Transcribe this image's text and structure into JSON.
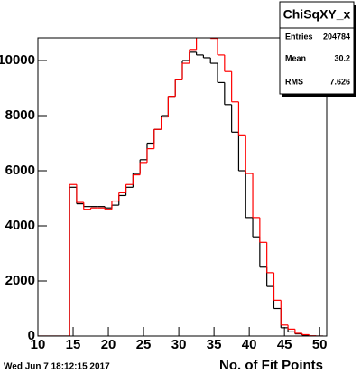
{
  "chart_data": {
    "type": "histogram",
    "x_label": "No. of Fit Points",
    "timestamp": "Wed Jun  7 18:12:15 2017",
    "bins": [
      9.5,
      10.5,
      11.5,
      12.5,
      13.5,
      14.5,
      15.5,
      16.5,
      17.5,
      18.5,
      19.5,
      20.5,
      21.5,
      22.5,
      23.5,
      24.5,
      25.5,
      26.5,
      27.5,
      28.5,
      29.5,
      30.5,
      31.5,
      32.5,
      33.5,
      34.5,
      35.5,
      36.5,
      37.5,
      38.5,
      39.5,
      40.5,
      41.5,
      42.5,
      43.5,
      44.5,
      45.5,
      46.5,
      47.5,
      48.5,
      49.5,
      50.5
    ],
    "series": [
      {
        "color": "#000000",
        "values": [
          0,
          0,
          0,
          0,
          0,
          5400,
          4800,
          4700,
          4700,
          4700,
          4650,
          4750,
          5100,
          5400,
          5900,
          6400,
          7000,
          7500,
          8000,
          8700,
          9300,
          10000,
          10300,
          10200,
          10100,
          9900,
          9200,
          8400,
          7400,
          6000,
          4300,
          3600,
          2500,
          1800,
          1000,
          300,
          150,
          80,
          30,
          0,
          0
        ]
      },
      {
        "color": "#ff0000",
        "values": [
          0,
          0,
          0,
          0,
          0,
          5500,
          4850,
          4600,
          4650,
          4650,
          4600,
          4900,
          5200,
          5500,
          5850,
          6300,
          6800,
          7500,
          7950,
          8700,
          9300,
          9900,
          10400,
          11000,
          11000,
          10800,
          10200,
          9600,
          8500,
          7300,
          5900,
          4300,
          3400,
          2300,
          1300,
          400,
          250,
          100,
          50,
          10,
          0
        ]
      }
    ],
    "xlim": [
      10,
      51
    ],
    "xticks": [
      10,
      15,
      20,
      25,
      30,
      35,
      40,
      45,
      50
    ],
    "ylim": [
      0,
      10820
    ],
    "yticks": [
      0,
      2000,
      4000,
      6000,
      8000,
      10000
    ],
    "stats": {
      "title": "ChiSqXY_x",
      "rows": [
        {
          "label": "Entries",
          "value": 204784
        },
        {
          "label": "Mean",
          "value": 30.2
        },
        {
          "label": "RMS",
          "value": 7.626
        }
      ]
    }
  }
}
